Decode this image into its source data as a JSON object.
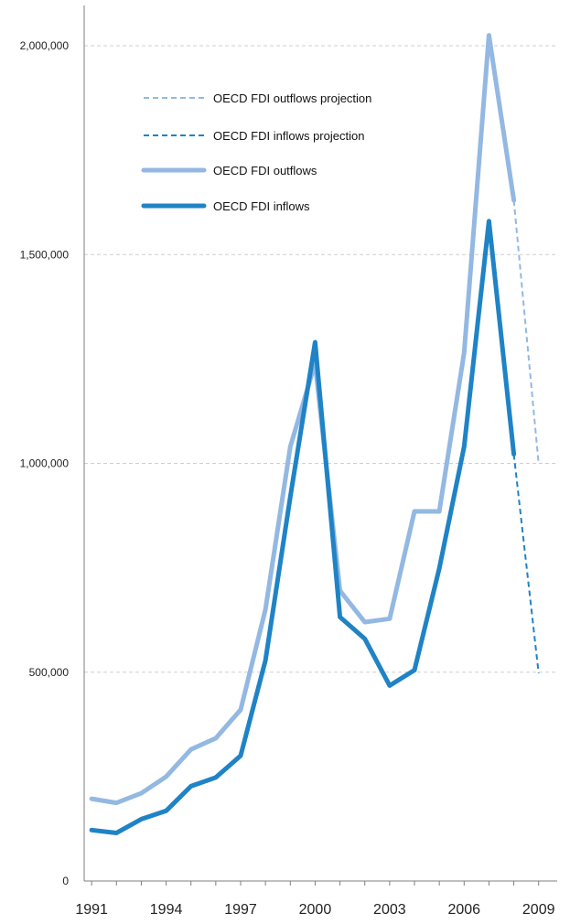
{
  "colors": {
    "outflows": "#93b8e2",
    "inflows": "#1f83c6",
    "grid": "#cfcfcf",
    "axis": "#7f7f7f"
  },
  "chart_data": {
    "type": "line",
    "x_tick_labels": [
      "1991",
      "1994",
      "1997",
      "2000",
      "2003",
      "2006",
      "2009"
    ],
    "y_tick_labels": [
      "0",
      "500,000",
      "1,000,000",
      "1,500,000",
      "2,000,000"
    ],
    "x_range": [
      1990.7,
      2009.6
    ],
    "ylim": [
      0,
      2100000
    ],
    "grid": "horizontal dashed",
    "legend_position": "top-left",
    "legend": [
      {
        "label": "OECD FDI outflows projection",
        "series": "outflows",
        "style": "dashed"
      },
      {
        "label": "OECD FDI inflows projection",
        "series": "inflows",
        "style": "dashed"
      },
      {
        "label": "OECD FDI outflows",
        "series": "outflows",
        "style": "solid"
      },
      {
        "label": "OECD FDI inflows",
        "series": "inflows",
        "style": "solid"
      }
    ],
    "series": [
      {
        "name": "OECD FDI outflows",
        "color_key": "outflows",
        "style": "solid",
        "x": [
          1991,
          1992,
          1993,
          1994,
          1995,
          1996,
          1997,
          1998,
          1999,
          2000,
          2001,
          2002,
          2003,
          2004,
          2005,
          2006,
          2007,
          2008
        ],
        "values": [
          197000,
          187000,
          210000,
          250000,
          315000,
          342000,
          410000,
          650000,
          1040000,
          1240000,
          695000,
          620000,
          628000,
          885000,
          885000,
          1265000,
          2025000,
          1630000
        ]
      },
      {
        "name": "OECD FDI inflows",
        "color_key": "inflows",
        "style": "solid",
        "x": [
          1991,
          1992,
          1993,
          1994,
          1995,
          1996,
          1997,
          1998,
          1999,
          2000,
          2001,
          2002,
          2003,
          2004,
          2005,
          2006,
          2007,
          2008
        ],
        "values": [
          122000,
          115000,
          148000,
          168000,
          227000,
          248000,
          300000,
          528000,
          920000,
          1290000,
          632000,
          580000,
          468000,
          505000,
          748000,
          1040000,
          1580000,
          1022000
        ]
      },
      {
        "name": "OECD FDI outflows projection",
        "color_key": "outflows",
        "style": "dashed",
        "x": [
          2008,
          2009
        ],
        "values": [
          1630000,
          1000000
        ]
      },
      {
        "name": "OECD FDI inflows projection",
        "color_key": "inflows",
        "style": "dashed",
        "x": [
          2008,
          2009
        ],
        "values": [
          1022000,
          498000
        ]
      }
    ]
  }
}
